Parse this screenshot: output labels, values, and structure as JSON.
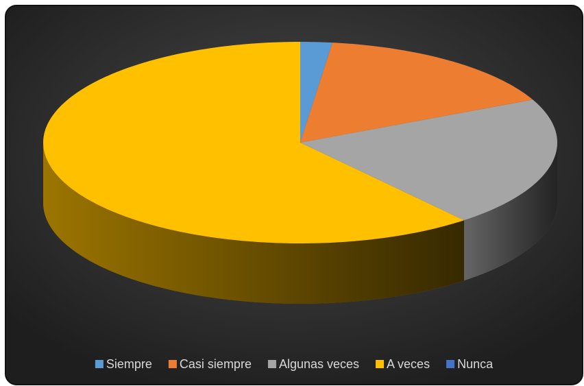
{
  "chart_data": {
    "type": "pie",
    "categories": [
      "Siempre",
      "Casi siempre",
      "Algunas veces",
      "A veces",
      "Nunca"
    ],
    "values": [
      2,
      16,
      21,
      61,
      0
    ],
    "colors": [
      "#5b9bd5",
      "#ed7d31",
      "#a5a5a5",
      "#ffc000",
      "#4472c4"
    ],
    "legend": "bottom"
  }
}
